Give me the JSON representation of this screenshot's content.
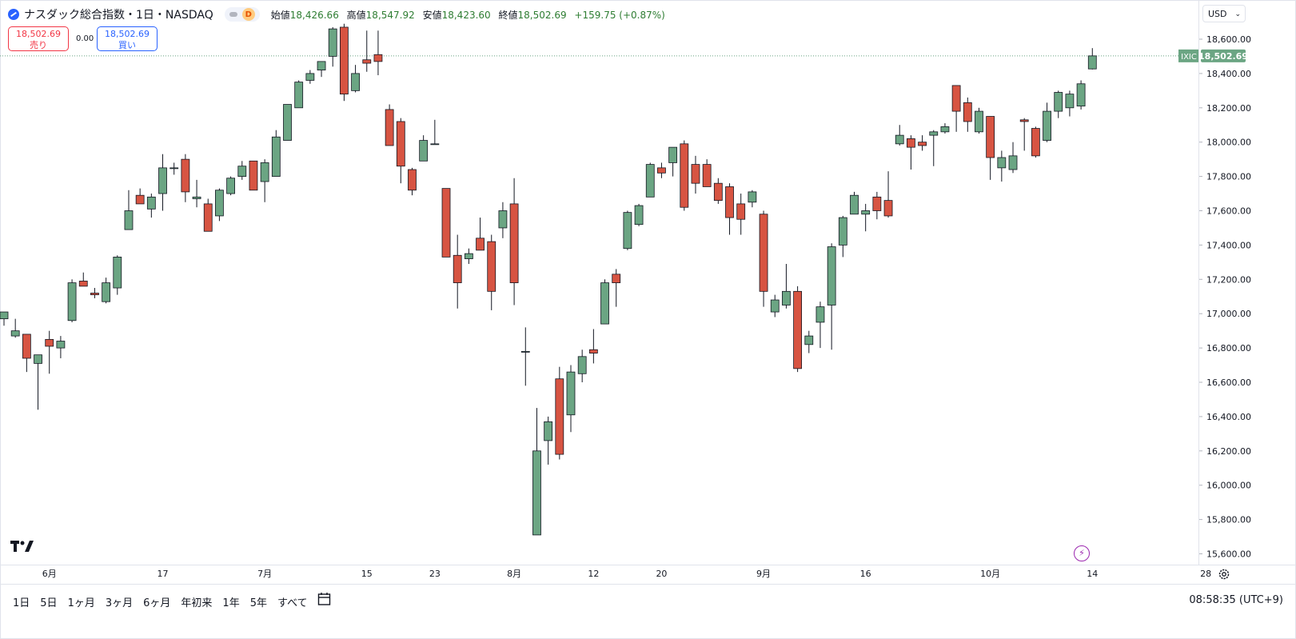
{
  "header": {
    "title": "ナスダック総合指数・1日・NASDAQ",
    "badge": "D",
    "ohlc": [
      {
        "label": "始値",
        "value": "18,426.66"
      },
      {
        "label": "高値",
        "value": "18,547.92"
      },
      {
        "label": "安値",
        "value": "18,423.60"
      },
      {
        "label": "終値",
        "value": "18,502.69"
      }
    ],
    "change": "+159.75 (+0.87%)"
  },
  "trade": {
    "sell_price": "18,502.69",
    "sell_label": "売り",
    "spread": "0.00",
    "buy_price": "18,502.69",
    "buy_label": "買い"
  },
  "currency": "USD",
  "last_price_tag": {
    "symbol": "IXIC",
    "price": "18,502.69"
  },
  "timeframes": [
    "1日",
    "5日",
    "1ヶ月",
    "3ヶ月",
    "6ヶ月",
    "年初来",
    "1年",
    "5年",
    "すべて"
  ],
  "clock": "08:58:35 (UTC+9)",
  "icons": {
    "logo": "tradingview-logo-icon",
    "calendar": "calendar-range-icon",
    "settings": "gear-icon",
    "lightning": "lightning-icon"
  },
  "colors": {
    "up": "#6ba583",
    "down": "#d75442",
    "last_price": "#6ba583"
  },
  "chart_data": {
    "type": "candlestick",
    "ylim": [
      15550,
      18680
    ],
    "y_ticks": [
      "15,600.00",
      "15,800.00",
      "16,000.00",
      "16,200.00",
      "16,400.00",
      "16,600.00",
      "16,800.00",
      "17,000.00",
      "17,200.00",
      "17,400.00",
      "17,600.00",
      "17,800.00",
      "18,000.00",
      "18,200.00",
      "18,400.00",
      "18,600.00"
    ],
    "x_ticks": [
      {
        "label": "6月",
        "index": 4
      },
      {
        "label": "17",
        "index": 14
      },
      {
        "label": "7月",
        "index": 23
      },
      {
        "label": "15",
        "index": 32
      },
      {
        "label": "23",
        "index": 38
      },
      {
        "label": "8月",
        "index": 45
      },
      {
        "label": "12",
        "index": 52
      },
      {
        "label": "20",
        "index": 58
      },
      {
        "label": "9月",
        "index": 67
      },
      {
        "label": "16",
        "index": 76
      },
      {
        "label": "10月",
        "index": 87
      },
      {
        "label": "14",
        "index": 96
      },
      {
        "label": "28",
        "index": 106
      }
    ],
    "last_price": 18502.69,
    "candles": [
      {
        "o": 16970,
        "h": 17010,
        "l": 16930,
        "c": 17010
      },
      {
        "o": 16870,
        "h": 16970,
        "l": 16860,
        "c": 16900
      },
      {
        "o": 16880,
        "h": 16880,
        "l": 16660,
        "c": 16740
      },
      {
        "o": 16710,
        "h": 16750,
        "l": 16440,
        "c": 16760
      },
      {
        "o": 16850,
        "h": 16900,
        "l": 16650,
        "c": 16810
      },
      {
        "o": 16800,
        "h": 16870,
        "l": 16740,
        "c": 16840
      },
      {
        "o": 16960,
        "h": 17200,
        "l": 16950,
        "c": 17180
      },
      {
        "o": 17190,
        "h": 17240,
        "l": 17160,
        "c": 17160
      },
      {
        "o": 17120,
        "h": 17150,
        "l": 17090,
        "c": 17110
      },
      {
        "o": 17070,
        "h": 17210,
        "l": 17060,
        "c": 17180
      },
      {
        "o": 17150,
        "h": 17340,
        "l": 17110,
        "c": 17330
      },
      {
        "o": 17490,
        "h": 17720,
        "l": 17490,
        "c": 17600
      },
      {
        "o": 17690,
        "h": 17730,
        "l": 17640,
        "c": 17640
      },
      {
        "o": 17610,
        "h": 17700,
        "l": 17560,
        "c": 17680
      },
      {
        "o": 17700,
        "h": 17930,
        "l": 17600,
        "c": 17850
      },
      {
        "o": 17850,
        "h": 17880,
        "l": 17810,
        "c": 17850
      },
      {
        "o": 17900,
        "h": 17930,
        "l": 17650,
        "c": 17710
      },
      {
        "o": 17670,
        "h": 17780,
        "l": 17620,
        "c": 17680
      },
      {
        "o": 17640,
        "h": 17670,
        "l": 17480,
        "c": 17480
      },
      {
        "o": 17570,
        "h": 17730,
        "l": 17540,
        "c": 17720
      },
      {
        "o": 17700,
        "h": 17800,
        "l": 17690,
        "c": 17790
      },
      {
        "o": 17800,
        "h": 17890,
        "l": 17780,
        "c": 17860
      },
      {
        "o": 17890,
        "h": 17890,
        "l": 17720,
        "c": 17720
      },
      {
        "o": 17770,
        "h": 17900,
        "l": 17650,
        "c": 17880
      },
      {
        "o": 17800,
        "h": 18070,
        "l": 17800,
        "c": 18030
      },
      {
        "o": 18010,
        "h": 18220,
        "l": 18010,
        "c": 18220
      },
      {
        "o": 18200,
        "h": 18360,
        "l": 18200,
        "c": 18350
      },
      {
        "o": 18360,
        "h": 18420,
        "l": 18340,
        "c": 18400
      },
      {
        "o": 18420,
        "h": 18470,
        "l": 18380,
        "c": 18470
      },
      {
        "o": 18500,
        "h": 18670,
        "l": 18440,
        "c": 18660
      },
      {
        "o": 18670,
        "h": 18690,
        "l": 18240,
        "c": 18280
      },
      {
        "o": 18300,
        "h": 18450,
        "l": 18290,
        "c": 18400
      },
      {
        "o": 18480,
        "h": 18650,
        "l": 18410,
        "c": 18460
      },
      {
        "o": 18510,
        "h": 18650,
        "l": 18390,
        "c": 18470
      },
      {
        "o": 18190,
        "h": 18220,
        "l": 17980,
        "c": 17980
      },
      {
        "o": 18120,
        "h": 18140,
        "l": 17760,
        "c": 17860
      },
      {
        "o": 17840,
        "h": 17850,
        "l": 17690,
        "c": 17720
      },
      {
        "o": 17890,
        "h": 18040,
        "l": 17890,
        "c": 18010
      },
      {
        "o": 17990,
        "h": 18130,
        "l": 17990,
        "c": 17990
      },
      {
        "o": 17730,
        "h": 17730,
        "l": 17330,
        "c": 17330
      },
      {
        "o": 17340,
        "h": 17460,
        "l": 17030,
        "c": 17180
      },
      {
        "o": 17320,
        "h": 17380,
        "l": 17290,
        "c": 17350
      },
      {
        "o": 17440,
        "h": 17560,
        "l": 17370,
        "c": 17370
      },
      {
        "o": 17420,
        "h": 17460,
        "l": 17020,
        "c": 17130
      },
      {
        "o": 17500,
        "h": 17650,
        "l": 17440,
        "c": 17600
      },
      {
        "o": 17640,
        "h": 17790,
        "l": 17050,
        "c": 17180
      },
      {
        "o": 16780,
        "h": 16920,
        "l": 16580,
        "c": 16780
      },
      {
        "o": 15710,
        "h": 16450,
        "l": 15710,
        "c": 16200
      },
      {
        "o": 16260,
        "h": 16400,
        "l": 16120,
        "c": 16370
      },
      {
        "o": 16620,
        "h": 16690,
        "l": 16150,
        "c": 16180
      },
      {
        "o": 16410,
        "h": 16700,
        "l": 16310,
        "c": 16660
      },
      {
        "o": 16650,
        "h": 16790,
        "l": 16600,
        "c": 16750
      },
      {
        "o": 16790,
        "h": 16910,
        "l": 16710,
        "c": 16770
      },
      {
        "o": 16940,
        "h": 17200,
        "l": 16940,
        "c": 17180
      },
      {
        "o": 17230,
        "h": 17260,
        "l": 17040,
        "c": 17180
      },
      {
        "o": 17380,
        "h": 17600,
        "l": 17370,
        "c": 17590
      },
      {
        "o": 17520,
        "h": 17640,
        "l": 17510,
        "c": 17630
      },
      {
        "o": 17680,
        "h": 17880,
        "l": 17680,
        "c": 17870
      },
      {
        "o": 17850,
        "h": 17880,
        "l": 17790,
        "c": 17820
      },
      {
        "o": 17880,
        "h": 17960,
        "l": 17800,
        "c": 17970
      },
      {
        "o": 17990,
        "h": 18010,
        "l": 17600,
        "c": 17620
      },
      {
        "o": 17870,
        "h": 17920,
        "l": 17700,
        "c": 17760
      },
      {
        "o": 17870,
        "h": 17900,
        "l": 17740,
        "c": 17740
      },
      {
        "o": 17760,
        "h": 17790,
        "l": 17640,
        "c": 17660
      },
      {
        "o": 17740,
        "h": 17760,
        "l": 17460,
        "c": 17560
      },
      {
        "o": 17640,
        "h": 17700,
        "l": 17460,
        "c": 17550
      },
      {
        "o": 17650,
        "h": 17720,
        "l": 17620,
        "c": 17710
      },
      {
        "o": 17580,
        "h": 17600,
        "l": 17040,
        "c": 17130
      },
      {
        "o": 17010,
        "h": 17110,
        "l": 16980,
        "c": 17080
      },
      {
        "o": 17050,
        "h": 17290,
        "l": 17030,
        "c": 17130
      },
      {
        "o": 17130,
        "h": 17160,
        "l": 16660,
        "c": 16680
      },
      {
        "o": 16820,
        "h": 16900,
        "l": 16770,
        "c": 16870
      },
      {
        "o": 16950,
        "h": 17070,
        "l": 16800,
        "c": 17040
      },
      {
        "o": 17050,
        "h": 17410,
        "l": 16790,
        "c": 17390
      },
      {
        "o": 17400,
        "h": 17570,
        "l": 17330,
        "c": 17560
      },
      {
        "o": 17580,
        "h": 17710,
        "l": 17580,
        "c": 17690
      },
      {
        "o": 17580,
        "h": 17640,
        "l": 17480,
        "c": 17600
      },
      {
        "o": 17680,
        "h": 17710,
        "l": 17550,
        "c": 17600
      },
      {
        "o": 17660,
        "h": 17830,
        "l": 17560,
        "c": 17570
      },
      {
        "o": 17990,
        "h": 18100,
        "l": 17980,
        "c": 18040
      },
      {
        "o": 18020,
        "h": 18040,
        "l": 17840,
        "c": 17970
      },
      {
        "o": 18000,
        "h": 18040,
        "l": 17950,
        "c": 17980
      },
      {
        "o": 18040,
        "h": 18070,
        "l": 17860,
        "c": 18060
      },
      {
        "o": 18060,
        "h": 18110,
        "l": 18050,
        "c": 18090
      },
      {
        "o": 18330,
        "h": 18330,
        "l": 18060,
        "c": 18180
      },
      {
        "o": 18230,
        "h": 18260,
        "l": 18060,
        "c": 18120
      },
      {
        "o": 18060,
        "h": 18200,
        "l": 18050,
        "c": 18180
      },
      {
        "o": 18150,
        "h": 18150,
        "l": 17780,
        "c": 17910
      },
      {
        "o": 17850,
        "h": 17950,
        "l": 17770,
        "c": 17910
      },
      {
        "o": 17840,
        "h": 18000,
        "l": 17820,
        "c": 17920
      },
      {
        "o": 18130,
        "h": 18140,
        "l": 17950,
        "c": 18120
      },
      {
        "o": 18080,
        "h": 18090,
        "l": 17910,
        "c": 17920
      },
      {
        "o": 18010,
        "h": 18230,
        "l": 18000,
        "c": 18180
      },
      {
        "o": 18180,
        "h": 18300,
        "l": 18140,
        "c": 18290
      },
      {
        "o": 18200,
        "h": 18300,
        "l": 18150,
        "c": 18280
      },
      {
        "o": 18210,
        "h": 18360,
        "l": 18190,
        "c": 18340
      },
      {
        "o": 18426.66,
        "h": 18547.92,
        "l": 18423.6,
        "c": 18502.69
      }
    ]
  }
}
